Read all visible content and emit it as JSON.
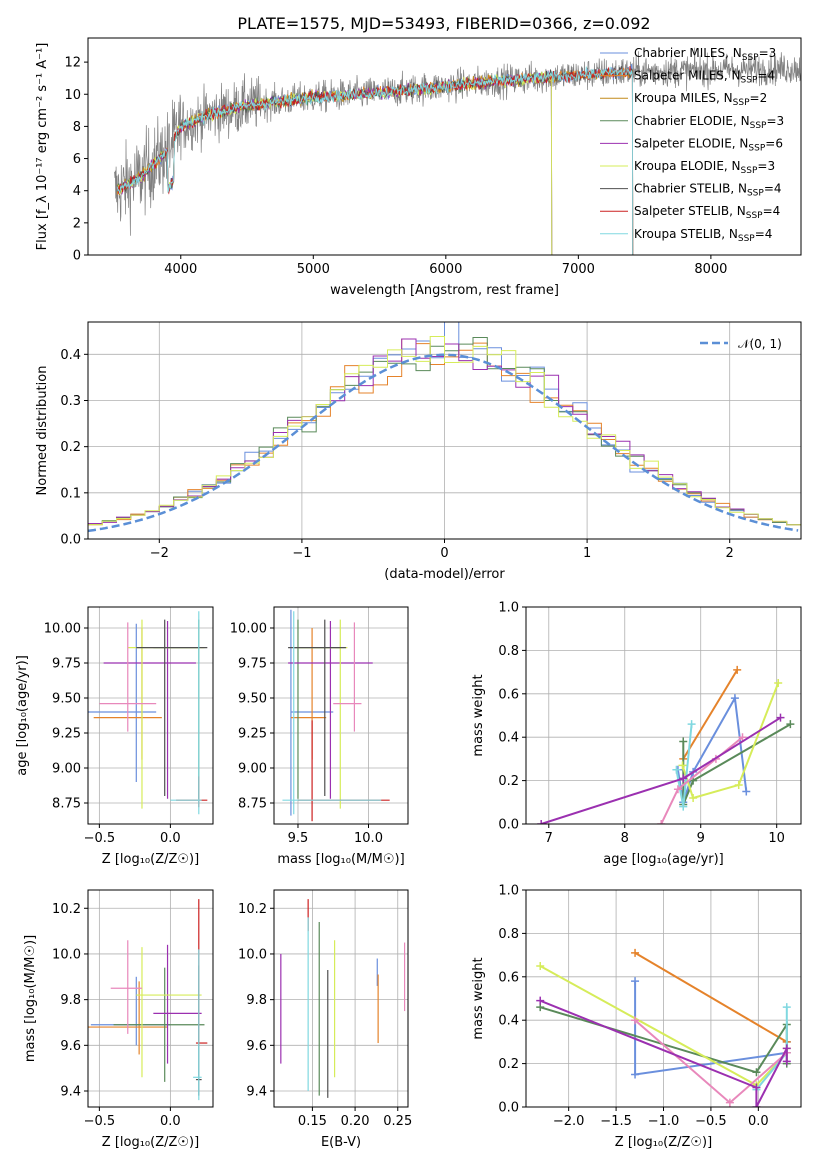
{
  "chart_data": [
    {
      "type": "line",
      "title": "PLATE=1575, MJD=53493, FIBERID=0366, z=0.092",
      "xlabel": "wavelength [Angstrom, rest frame]",
      "ylabel": "Flux [f_λ 10⁻¹⁷ erg cm⁻² s⁻¹ A⁻¹]",
      "xlim": [
        3300,
        8680
      ],
      "ylim": [
        0,
        13.5
      ],
      "xticks": [
        "4000",
        "5000",
        "6000",
        "7000",
        "8000"
      ],
      "yticks": [
        "0",
        "2",
        "4",
        "6",
        "8",
        "10",
        "12"
      ],
      "legend_position": "upper right",
      "data_series": {
        "name": "",
        "color": "#808080",
        "x_range": [
          3500,
          8690
        ]
      },
      "model_series": [
        {
          "name": "Chabrier MILES, N_SSP=3",
          "color": "#6a8fdd",
          "x_range": [
            3520,
            7410
          ]
        },
        {
          "name": "Salpeter MILES, N_SSP=4",
          "color": "#e5832b",
          "x_range": [
            3520,
            7410
          ]
        },
        {
          "name": "Kroupa MILES, N_SSP=2",
          "color": "#c28a1a",
          "x_range": [
            3520,
            7410
          ]
        },
        {
          "name": "Chabrier ELODIE, N_SSP=3",
          "color": "#5a8a5a",
          "x_range": [
            3520,
            6800
          ]
        },
        {
          "name": "Salpeter ELODIE, N_SSP=6",
          "color": "#9b30b0",
          "x_range": [
            3520,
            6800
          ]
        },
        {
          "name": "Kroupa ELODIE, N_SSP=3",
          "color": "#d6ec5a",
          "x_range": [
            3520,
            6800
          ]
        },
        {
          "name": "Chabrier STELIB, N_SSP=4",
          "color": "#505050",
          "x_range": [
            3520,
            7410
          ]
        },
        {
          "name": "Salpeter STELIB, N_SSP=4",
          "color": "#cc2020",
          "x_range": [
            3520,
            7410
          ]
        },
        {
          "name": "Kroupa STELIB, N_SSP=4",
          "color": "#80d8e0",
          "x_range": [
            3520,
            7410
          ]
        }
      ],
      "legend_labels": [
        "Chabrier MILES, N",
        "Salpeter MILES, N",
        "Kroupa MILES, N",
        "Chabrier ELODIE, N",
        "Salpeter ELODIE, N",
        "Kroupa ELODIE, N",
        "Chabrier STELIB, N",
        "Salpeter STELIB, N",
        "Kroupa STELIB, N"
      ],
      "legend_sub": "SSP",
      "legend_counts": [
        "=3",
        "=4",
        "=2",
        "=3",
        "=6",
        "=3",
        "=4",
        "=4",
        "=4"
      ],
      "continuum_anchor": {
        "x": [
          3500,
          3700,
          3900,
          4000,
          4200,
          4500,
          5000,
          5500,
          6000,
          6500,
          7000,
          7400,
          8000,
          8600
        ],
        "y": [
          3.9,
          4.9,
          6.5,
          8.0,
          8.7,
          9.3,
          9.8,
          10.1,
          10.5,
          10.9,
          11.2,
          11.4,
          11.5,
          11.6
        ]
      },
      "grid": false
    },
    {
      "type": "bar",
      "xlabel": "(data-model)/error",
      "ylabel": "Normed distribution",
      "xlim": [
        -2.5,
        2.5
      ],
      "ylim": [
        0,
        0.47
      ],
      "xticks": [
        "−2",
        "−1",
        "0",
        "1",
        "2"
      ],
      "yticks": [
        "0.0",
        "0.1",
        "0.2",
        "0.3",
        "0.4"
      ],
      "grid": true,
      "legend": "𝒩(0, 1)",
      "normal_curve": {
        "name": "𝒩(0, 1)",
        "color": "#5b8fd6",
        "style": "dashed"
      },
      "histogram_colors": [
        "#6a8fdd",
        "#e5832b",
        "#5a8a5a",
        "#9b30b0",
        "#d6ec5a"
      ],
      "bin_width": 0.1
    },
    {
      "type": "scatter",
      "xlabel": "Z [log₁₀(Z/Z☉)]",
      "ylabel": "age  [log₁₀(age/yr)]",
      "xlim": [
        -0.58,
        0.3
      ],
      "ylim": [
        8.6,
        10.15
      ],
      "xticks": [
        "−0.5",
        "0.0"
      ],
      "yticks": [
        "8.75",
        "9.00",
        "9.25",
        "9.50",
        "9.75",
        "10.00"
      ],
      "grid": true,
      "errorbars": [
        {
          "color": "#6a8fdd",
          "x": -0.24,
          "y": 9.4,
          "xerr": [
            0.34,
            0.14
          ],
          "yerr": [
            0.5,
            0.63
          ]
        },
        {
          "color": "#e5832b",
          "x": -0.2,
          "y": 9.36,
          "xerr": [
            0.34,
            0.14
          ],
          "yerr": [
            0.3,
            0.64
          ]
        },
        {
          "color": "#5a8a5a",
          "x": 0.2,
          "y": 9.86,
          "xerr": [
            0.32,
            0.0
          ],
          "yerr": [
            1.08,
            0.2
          ]
        },
        {
          "color": "#9b30b0",
          "x": -0.02,
          "y": 9.75,
          "xerr": [
            0.45,
            0.2
          ],
          "yerr": [
            0.97,
            0.3
          ]
        },
        {
          "color": "#d6ec5a",
          "x": -0.2,
          "y": 9.86,
          "xerr": [
            0.1,
            0.44
          ],
          "yerr": [
            1.15,
            0.2
          ]
        },
        {
          "color": "#505050",
          "x": -0.04,
          "y": 9.86,
          "xerr": [
            0.2,
            0.3
          ],
          "yerr": [
            1.06,
            0.2
          ]
        },
        {
          "color": "#cc2020",
          "x": 0.2,
          "y": 8.77,
          "xerr": [
            0.16,
            0.06
          ],
          "yerr": [
            0.05,
            0.17
          ]
        },
        {
          "color": "#80d8e0",
          "x": 0.2,
          "y": 8.77,
          "xerr": [
            0.2,
            0.02
          ],
          "yerr": [
            0.1,
            1.35
          ]
        },
        {
          "color": "#e888bb",
          "x": -0.3,
          "y": 9.46,
          "xerr": [
            0.2,
            0.2
          ],
          "yerr": [
            0.2,
            0.58
          ]
        }
      ]
    },
    {
      "type": "scatter",
      "xlabel": "mass [log₁₀(M/M☉)]",
      "ylabel": "",
      "xlim": [
        9.33,
        10.28
      ],
      "ylim": [
        8.6,
        10.15
      ],
      "xticks": [
        "9.5",
        "10.0"
      ],
      "yticks": [
        "8.75",
        "9.00",
        "9.25",
        "9.50",
        "9.75",
        "10.00"
      ],
      "grid": true,
      "errorbars": [
        {
          "color": "#6a8fdd",
          "x": 9.45,
          "y": 9.4,
          "xerr": [
            0.0,
            0.3
          ],
          "yerr": [
            0.74,
            0.73
          ]
        },
        {
          "color": "#e5832b",
          "x": 9.6,
          "y": 9.36,
          "xerr": [
            0.15,
            0.1
          ],
          "yerr": [
            0.3,
            0.64
          ]
        },
        {
          "color": "#5a8a5a",
          "x": 9.5,
          "y": 9.86,
          "xerr": [
            0.03,
            0.3
          ],
          "yerr": [
            1.08,
            0.2
          ]
        },
        {
          "color": "#9b30b0",
          "x": 9.73,
          "y": 9.75,
          "xerr": [
            0.3,
            0.3
          ],
          "yerr": [
            0.97,
            0.3
          ]
        },
        {
          "color": "#d6ec5a",
          "x": 9.8,
          "y": 9.86,
          "xerr": [
            0.3,
            0.05
          ],
          "yerr": [
            1.15,
            0.2
          ]
        },
        {
          "color": "#505050",
          "x": 9.69,
          "y": 9.86,
          "xerr": [
            0.26,
            0.15
          ],
          "yerr": [
            1.06,
            0.2
          ]
        },
        {
          "color": "#cc2020",
          "x": 9.6,
          "y": 8.77,
          "xerr": [
            0.1,
            0.55
          ],
          "yerr": [
            0.15,
            0.57
          ]
        },
        {
          "color": "#80d8e0",
          "x": 9.47,
          "y": 8.77,
          "xerr": [
            0.08,
            0.62
          ],
          "yerr": [
            0.1,
            1.35
          ]
        },
        {
          "color": "#e888bb",
          "x": 9.9,
          "y": 9.46,
          "xerr": [
            0.15,
            0.05
          ],
          "yerr": [
            0.2,
            0.58
          ]
        }
      ]
    },
    {
      "type": "line",
      "xlabel": "age  [log₁₀(age/yr)]",
      "ylabel": "mass weight",
      "xlim": [
        6.7,
        10.32
      ],
      "ylim": [
        0,
        1.0
      ],
      "xticks": [
        "7",
        "8",
        "9",
        "10"
      ],
      "yticks": [
        "0.0",
        "0.2",
        "0.4",
        "0.6",
        "0.8",
        "1.0"
      ],
      "grid": true,
      "series": [
        {
          "color": "#6a8fdd",
          "x": [
            8.7,
            8.77,
            8.9,
            9.45,
            9.6
          ],
          "y": [
            0.25,
            0.1,
            0.24,
            0.58,
            0.15
          ]
        },
        {
          "color": "#e5832b",
          "x": [
            8.77,
            9.48
          ],
          "y": [
            0.3,
            0.71
          ]
        },
        {
          "color": "#5a8a5a",
          "x": [
            8.77,
            8.77,
            8.9,
            10.18
          ],
          "y": [
            0.38,
            0.09,
            0.2,
            0.46
          ]
        },
        {
          "color": "#d6ec5a",
          "x": [
            8.76,
            8.9,
            9.5,
            10.02
          ],
          "y": [
            0.27,
            0.12,
            0.18,
            0.65
          ]
        },
        {
          "color": "#80d8e0",
          "x": [
            8.68,
            8.77,
            8.88
          ],
          "y": [
            0.25,
            0.08,
            0.46
          ]
        },
        {
          "color": "#e888bb",
          "x": [
            8.48,
            8.7,
            9.2,
            9.55
          ],
          "y": [
            0.0,
            0.16,
            0.3,
            0.4
          ]
        },
        {
          "color": "#9b30b0",
          "x": [
            6.9,
            8.77,
            10.05
          ],
          "y": [
            0.0,
            0.21,
            0.49
          ]
        }
      ]
    },
    {
      "type": "scatter",
      "xlabel": "Z [log₁₀(Z/Z☉)]",
      "ylabel": "mass [log₁₀(M/M☉)]",
      "xlim": [
        -0.58,
        0.3
      ],
      "ylim": [
        9.33,
        10.28
      ],
      "xticks": [
        "−0.5",
        "0.0"
      ],
      "yticks": [
        "9.4",
        "9.6",
        "9.8",
        "10.0",
        "10.2"
      ],
      "grid": true,
      "errorbars": [
        {
          "color": "#6a8fdd",
          "x": -0.24,
          "y": 9.69,
          "xerr": [
            0.32,
            0.24
          ],
          "yerr": [
            0.09,
            0.21
          ]
        },
        {
          "color": "#e5832b",
          "x": -0.22,
          "y": 9.68,
          "xerr": [
            0.36,
            0.2
          ],
          "yerr": [
            0.12,
            0.2
          ]
        },
        {
          "color": "#5a8a5a",
          "x": -0.04,
          "y": 9.69,
          "xerr": [
            0.36,
            0.28
          ],
          "yerr": [
            0.25,
            0.25
          ]
        },
        {
          "color": "#9b30b0",
          "x": -0.02,
          "y": 9.74,
          "xerr": [
            0.1,
            0.24
          ],
          "yerr": [
            0.22,
            0.3
          ]
        },
        {
          "color": "#d6ec5a",
          "x": -0.2,
          "y": 9.82,
          "xerr": [
            0.04,
            0.42
          ],
          "yerr": [
            0.36,
            0.21
          ]
        },
        {
          "color": "#505050",
          "x": 0.2,
          "y": 9.45,
          "xerr": [
            0.02,
            0.02
          ],
          "yerr": [
            0.07,
            0.5
          ]
        },
        {
          "color": "#cc2020",
          "x": 0.2,
          "y": 9.61,
          "xerr": [
            0.02,
            0.06
          ],
          "yerr": [
            0.0,
            0.63
          ]
        },
        {
          "color": "#80d8e0",
          "x": 0.2,
          "y": 9.46,
          "xerr": [
            0.04,
            0.02
          ],
          "yerr": [
            0.1,
            0.56
          ]
        },
        {
          "color": "#e888bb",
          "x": -0.3,
          "y": 9.85,
          "xerr": [
            0.12,
            0.1
          ],
          "yerr": [
            0.2,
            0.21
          ]
        }
      ]
    },
    {
      "type": "scatter",
      "xlabel": "E(B-V)",
      "ylabel": "",
      "xlim": [
        0.105,
        0.262
      ],
      "ylim": [
        9.33,
        10.28
      ],
      "xticks": [
        "0.15",
        "0.20",
        "0.25"
      ],
      "yticks": [
        "9.4",
        "9.6",
        "9.8",
        "10.0",
        "10.2"
      ],
      "grid": true,
      "errorbars": [
        {
          "color": "#9b30b0",
          "x": 0.113,
          "y": 9.76,
          "yerr": [
            0.24,
            0.24
          ]
        },
        {
          "color": "#cc2020",
          "x": 0.145,
          "y": 10.17,
          "yerr": [
            0.07,
            0.07
          ]
        },
        {
          "color": "#80d8e0",
          "x": 0.145,
          "y": 9.78,
          "yerr": [
            0.38,
            0.38
          ]
        },
        {
          "color": "#5a8a5a",
          "x": 0.158,
          "y": 9.76,
          "yerr": [
            0.38,
            0.38
          ]
        },
        {
          "color": "#505050",
          "x": 0.168,
          "y": 9.65,
          "yerr": [
            0.28,
            0.28
          ]
        },
        {
          "color": "#d6ec5a",
          "x": 0.176,
          "y": 9.76,
          "yerr": [
            0.3,
            0.3
          ]
        },
        {
          "color": "#6a8fdd",
          "x": 0.226,
          "y": 9.92,
          "yerr": [
            0.06,
            0.06
          ]
        },
        {
          "color": "#e5832b",
          "x": 0.227,
          "y": 9.76,
          "yerr": [
            0.15,
            0.15
          ]
        },
        {
          "color": "#e888bb",
          "x": 0.258,
          "y": 9.9,
          "yerr": [
            0.15,
            0.15
          ]
        }
      ]
    },
    {
      "type": "line",
      "xlabel": "Z [log₁₀(Z/Z☉)]",
      "ylabel": "mass weight",
      "xlim": [
        -2.45,
        0.45
      ],
      "ylim": [
        0,
        1.0
      ],
      "xticks": [
        "−2.0",
        "−1.5",
        "−1.0",
        "−0.5",
        "0.0"
      ],
      "yticks": [
        "0.0",
        "0.2",
        "0.4",
        "0.6",
        "0.8",
        "1.0"
      ],
      "grid": true,
      "series": [
        {
          "color": "#6a8fdd",
          "x": [
            -1.3,
            -1.3,
            0.3,
            0.3
          ],
          "y": [
            0.58,
            0.15,
            0.25,
            0.3
          ]
        },
        {
          "color": "#e5832b",
          "x": [
            -1.3,
            0.3
          ],
          "y": [
            0.71,
            0.3
          ]
        },
        {
          "color": "#5a8a5a",
          "x": [
            -2.3,
            -0.02,
            0.3,
            0.3
          ],
          "y": [
            0.46,
            0.16,
            0.38,
            0.2
          ]
        },
        {
          "color": "#d6ec5a",
          "x": [
            -2.3,
            -0.02,
            0.3,
            0.3
          ],
          "y": [
            0.65,
            0.1,
            0.25,
            0.27
          ]
        },
        {
          "color": "#80d8e0",
          "x": [
            -0.02,
            0.3,
            0.3
          ],
          "y": [
            0.08,
            0.25,
            0.46
          ]
        },
        {
          "color": "#e888bb",
          "x": [
            -1.3,
            -0.3,
            0.3
          ],
          "y": [
            0.4,
            0.02,
            0.25
          ]
        },
        {
          "color": "#9b30b0",
          "x": [
            -2.3,
            -0.02,
            -0.02,
            0.3,
            0.3
          ],
          "y": [
            0.49,
            0.09,
            0.0,
            0.27,
            0.21
          ]
        }
      ]
    }
  ]
}
